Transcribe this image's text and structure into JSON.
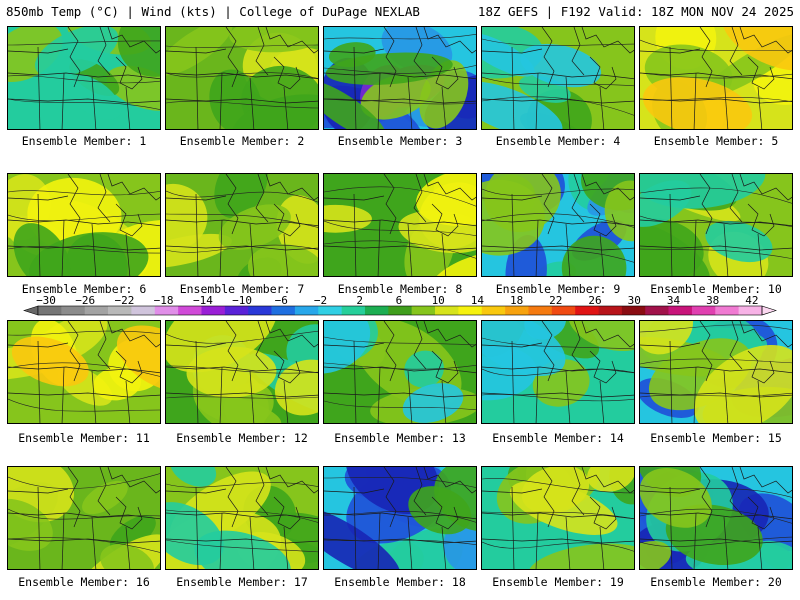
{
  "header": {
    "left": "850mb Temp (°C) | Wind (kts) | College of DuPage NEXLAB",
    "right": "18Z GEFS | F192 Valid: 18Z MON NOV 24 2025"
  },
  "members": [
    {
      "label": "Ensemble Member: 1",
      "base": "#23cc9e",
      "colors": [
        "#86c51c",
        "#3fa51c",
        "#23cc9e"
      ],
      "overlay": []
    },
    {
      "label": "Ensemble Member: 2",
      "base": "#6ab61c",
      "colors": [
        "#d6e31b",
        "#86c51c",
        "#3fa51c"
      ],
      "overlay": []
    },
    {
      "label": "Ensemble Member: 3",
      "base": "#25c5e0",
      "colors": [
        "#2896e6",
        "#1f4fd8",
        "#1725b5",
        "#7a2bd1"
      ],
      "overlay": [
        "#86c51c",
        "#3fa51c"
      ]
    },
    {
      "label": "Ensemble Member: 4",
      "base": "#86c51c",
      "colors": [
        "#3fa51c",
        "#23cc9e",
        "#25c5e0"
      ],
      "overlay": []
    },
    {
      "label": "Ensemble Member: 5",
      "base": "#d6e31b",
      "colors": [
        "#f3f30e",
        "#86c51c",
        "#f9c80e"
      ],
      "overlay": []
    },
    {
      "label": "Ensemble Member: 6",
      "base": "#86c51c",
      "colors": [
        "#d6e31b",
        "#f3f30e",
        "#3fa51c"
      ],
      "overlay": []
    },
    {
      "label": "Ensemble Member: 7",
      "base": "#6ab61c",
      "colors": [
        "#d6e31b",
        "#3fa51c",
        "#86c51c"
      ],
      "overlay": []
    },
    {
      "label": "Ensemble Member: 8",
      "base": "#3fa51c",
      "colors": [
        "#86c51c",
        "#d6e31b",
        "#f3f30e"
      ],
      "overlay": []
    },
    {
      "label": "Ensemble Member: 9",
      "base": "#25c5e0",
      "colors": [
        "#23cc9e",
        "#2896e6",
        "#1f4fd8"
      ],
      "overlay": [
        "#3fa51c",
        "#86c51c"
      ]
    },
    {
      "label": "Ensemble Member: 10",
      "base": "#86c51c",
      "colors": [
        "#d6e31b",
        "#3fa51c",
        "#23cc9e"
      ],
      "overlay": []
    },
    {
      "label": "Ensemble Member: 11",
      "base": "#86c51c",
      "colors": [
        "#d6e31b",
        "#f3f30e",
        "#f9c80e"
      ],
      "overlay": []
    },
    {
      "label": "Ensemble Member: 12",
      "base": "#3fa51c",
      "colors": [
        "#23cc9e",
        "#86c51c",
        "#d6e31b"
      ],
      "overlay": []
    },
    {
      "label": "Ensemble Member: 13",
      "base": "#3fa51c",
      "colors": [
        "#86c51c",
        "#23cc9e",
        "#25c5e0"
      ],
      "overlay": []
    },
    {
      "label": "Ensemble Member: 14",
      "base": "#23cc9e",
      "colors": [
        "#3fa51c",
        "#86c51c",
        "#25c5e0"
      ],
      "overlay": []
    },
    {
      "label": "Ensemble Member: 15",
      "base": "#25c5e0",
      "colors": [
        "#2896e6",
        "#1f4fd8",
        "#23cc9e"
      ],
      "overlay": [
        "#86c51c",
        "#d6e31b"
      ]
    },
    {
      "label": "Ensemble Member: 16",
      "base": "#6ab61c",
      "colors": [
        "#3fa51c",
        "#d6e31b",
        "#86c51c"
      ],
      "overlay": []
    },
    {
      "label": "Ensemble Member: 17",
      "base": "#86c51c",
      "colors": [
        "#3fa51c",
        "#d6e31b",
        "#23cc9e"
      ],
      "overlay": []
    },
    {
      "label": "Ensemble Member: 18",
      "base": "#25c5e0",
      "colors": [
        "#23cc9e",
        "#2896e6",
        "#1f4fd8",
        "#1725b5"
      ],
      "overlay": [
        "#3fa51c"
      ]
    },
    {
      "label": "Ensemble Member: 19",
      "base": "#23cc9e",
      "colors": [
        "#3fa51c",
        "#86c51c",
        "#d6e31b"
      ],
      "overlay": []
    },
    {
      "label": "Ensemble Member: 20",
      "base": "#25c5e0",
      "colors": [
        "#2896e6",
        "#1f4fd8",
        "#1725b5",
        "#23cc9e"
      ],
      "overlay": [
        "#3fa51c",
        "#86c51c"
      ]
    }
  ],
  "colorbar": {
    "labels": [
      "-30",
      "-26",
      "-22",
      "-18",
      "-14",
      "-10",
      "-6",
      "-2",
      "2",
      "6",
      "10",
      "14",
      "18",
      "22",
      "26",
      "30",
      "34",
      "38",
      "42"
    ],
    "colors": [
      "#767676",
      "#8c8c8c",
      "#a3a3a3",
      "#b9b9b9",
      "#d0c4dc",
      "#e08ee8",
      "#d04ad8",
      "#9a1fd6",
      "#5a22d8",
      "#2a38d8",
      "#1f6fe0",
      "#28a7ea",
      "#30cfe4",
      "#26cf9a",
      "#1cae52",
      "#3f9e1c",
      "#86c51c",
      "#d6e31b",
      "#f6f20e",
      "#f9c80e",
      "#f7a20e",
      "#f57a10",
      "#f04a12",
      "#e01414",
      "#b8141a",
      "#8a0c12",
      "#a1124a",
      "#c8147a",
      "#e040b0",
      "#f07ad2",
      "#f7b2e6"
    ]
  }
}
